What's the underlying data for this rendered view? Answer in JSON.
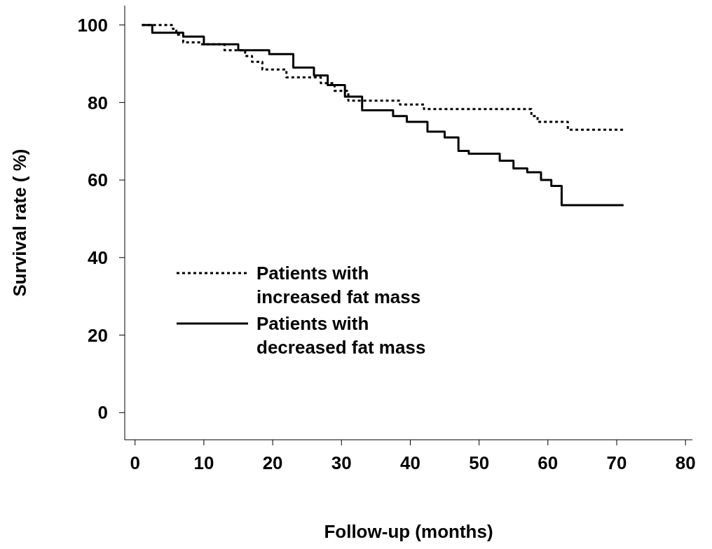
{
  "chart_data": {
    "type": "step",
    "xlabel": "Follow-up (months)",
    "ylabel": "Survival   rate ( %)",
    "xlim": [
      -1.5,
      81
    ],
    "ylim": [
      -7,
      105
    ],
    "xticks": [
      0,
      10,
      20,
      30,
      40,
      50,
      60,
      70,
      80
    ],
    "yticks": [
      0,
      20,
      40,
      60,
      80,
      100
    ],
    "legend": "left",
    "marker": "none",
    "series": [
      {
        "name": "Patients with increased fat mass",
        "color": "#000000",
        "line_style": "dotted",
        "x": [
          1,
          5.5,
          6,
          7,
          9.5,
          13,
          16,
          17,
          18.5,
          22,
          26,
          27,
          29,
          31,
          33.5,
          38.5,
          42,
          57.6,
          58.5,
          62.9,
          71
        ],
        "values": [
          100,
          99,
          97.5,
          95.5,
          95,
          93.5,
          92,
          90.5,
          88.5,
          86.5,
          86.5,
          85,
          83,
          80.5,
          80.5,
          79.5,
          78.3,
          76.5,
          75,
          73,
          73
        ]
      },
      {
        "name": "Patients with decreased fat mass",
        "color": "#000000",
        "line_style": "solid",
        "x": [
          1,
          2.5,
          7,
          10,
          15,
          19.5,
          23,
          26,
          28,
          30.5,
          33,
          37.5,
          39.5,
          42.5,
          45,
          47,
          48.5,
          53,
          55,
          57,
          59,
          60.5,
          61.5,
          62,
          71
        ],
        "values": [
          100,
          98,
          97,
          95,
          93.5,
          92.5,
          89,
          87,
          84.5,
          81.5,
          78,
          76.5,
          75,
          72.5,
          71,
          67.5,
          66.8,
          65,
          63,
          62,
          60,
          58.5,
          58.5,
          53.5,
          53.5
        ]
      }
    ]
  }
}
